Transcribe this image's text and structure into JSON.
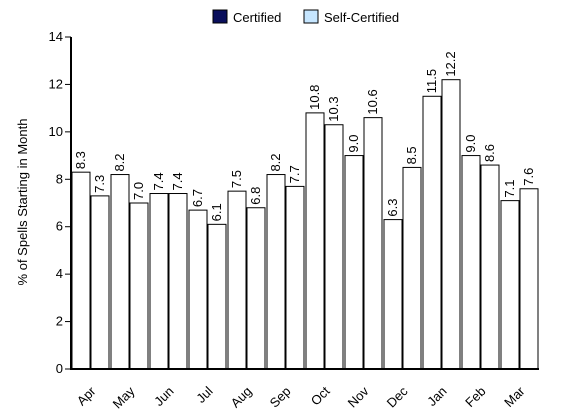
{
  "chart_data": {
    "type": "bar",
    "title": "",
    "xlabel": "",
    "ylabel": "% of Spells Starting in Month",
    "ylim": [
      0,
      14
    ],
    "yticks": [
      0,
      2,
      4,
      6,
      8,
      10,
      12,
      14
    ],
    "grid": false,
    "legend_position": "top-center",
    "categories": [
      "Apr",
      "May",
      "Jun",
      "Jul",
      "Aug",
      "Sep",
      "Oct",
      "Nov",
      "Dec",
      "Jan",
      "Feb",
      "Mar"
    ],
    "series": [
      {
        "name": "Certified",
        "color": "#0a0f5c",
        "values": [
          8.3,
          8.2,
          7.4,
          6.7,
          7.5,
          8.2,
          10.8,
          9.0,
          6.3,
          11.5,
          9.0,
          7.1
        ]
      },
      {
        "name": "Self-Certified",
        "color": "#c6e6ff",
        "values": [
          7.3,
          7.0,
          7.4,
          6.1,
          6.8,
          7.7,
          10.3,
          10.6,
          8.5,
          12.2,
          8.6,
          7.6
        ]
      }
    ]
  }
}
